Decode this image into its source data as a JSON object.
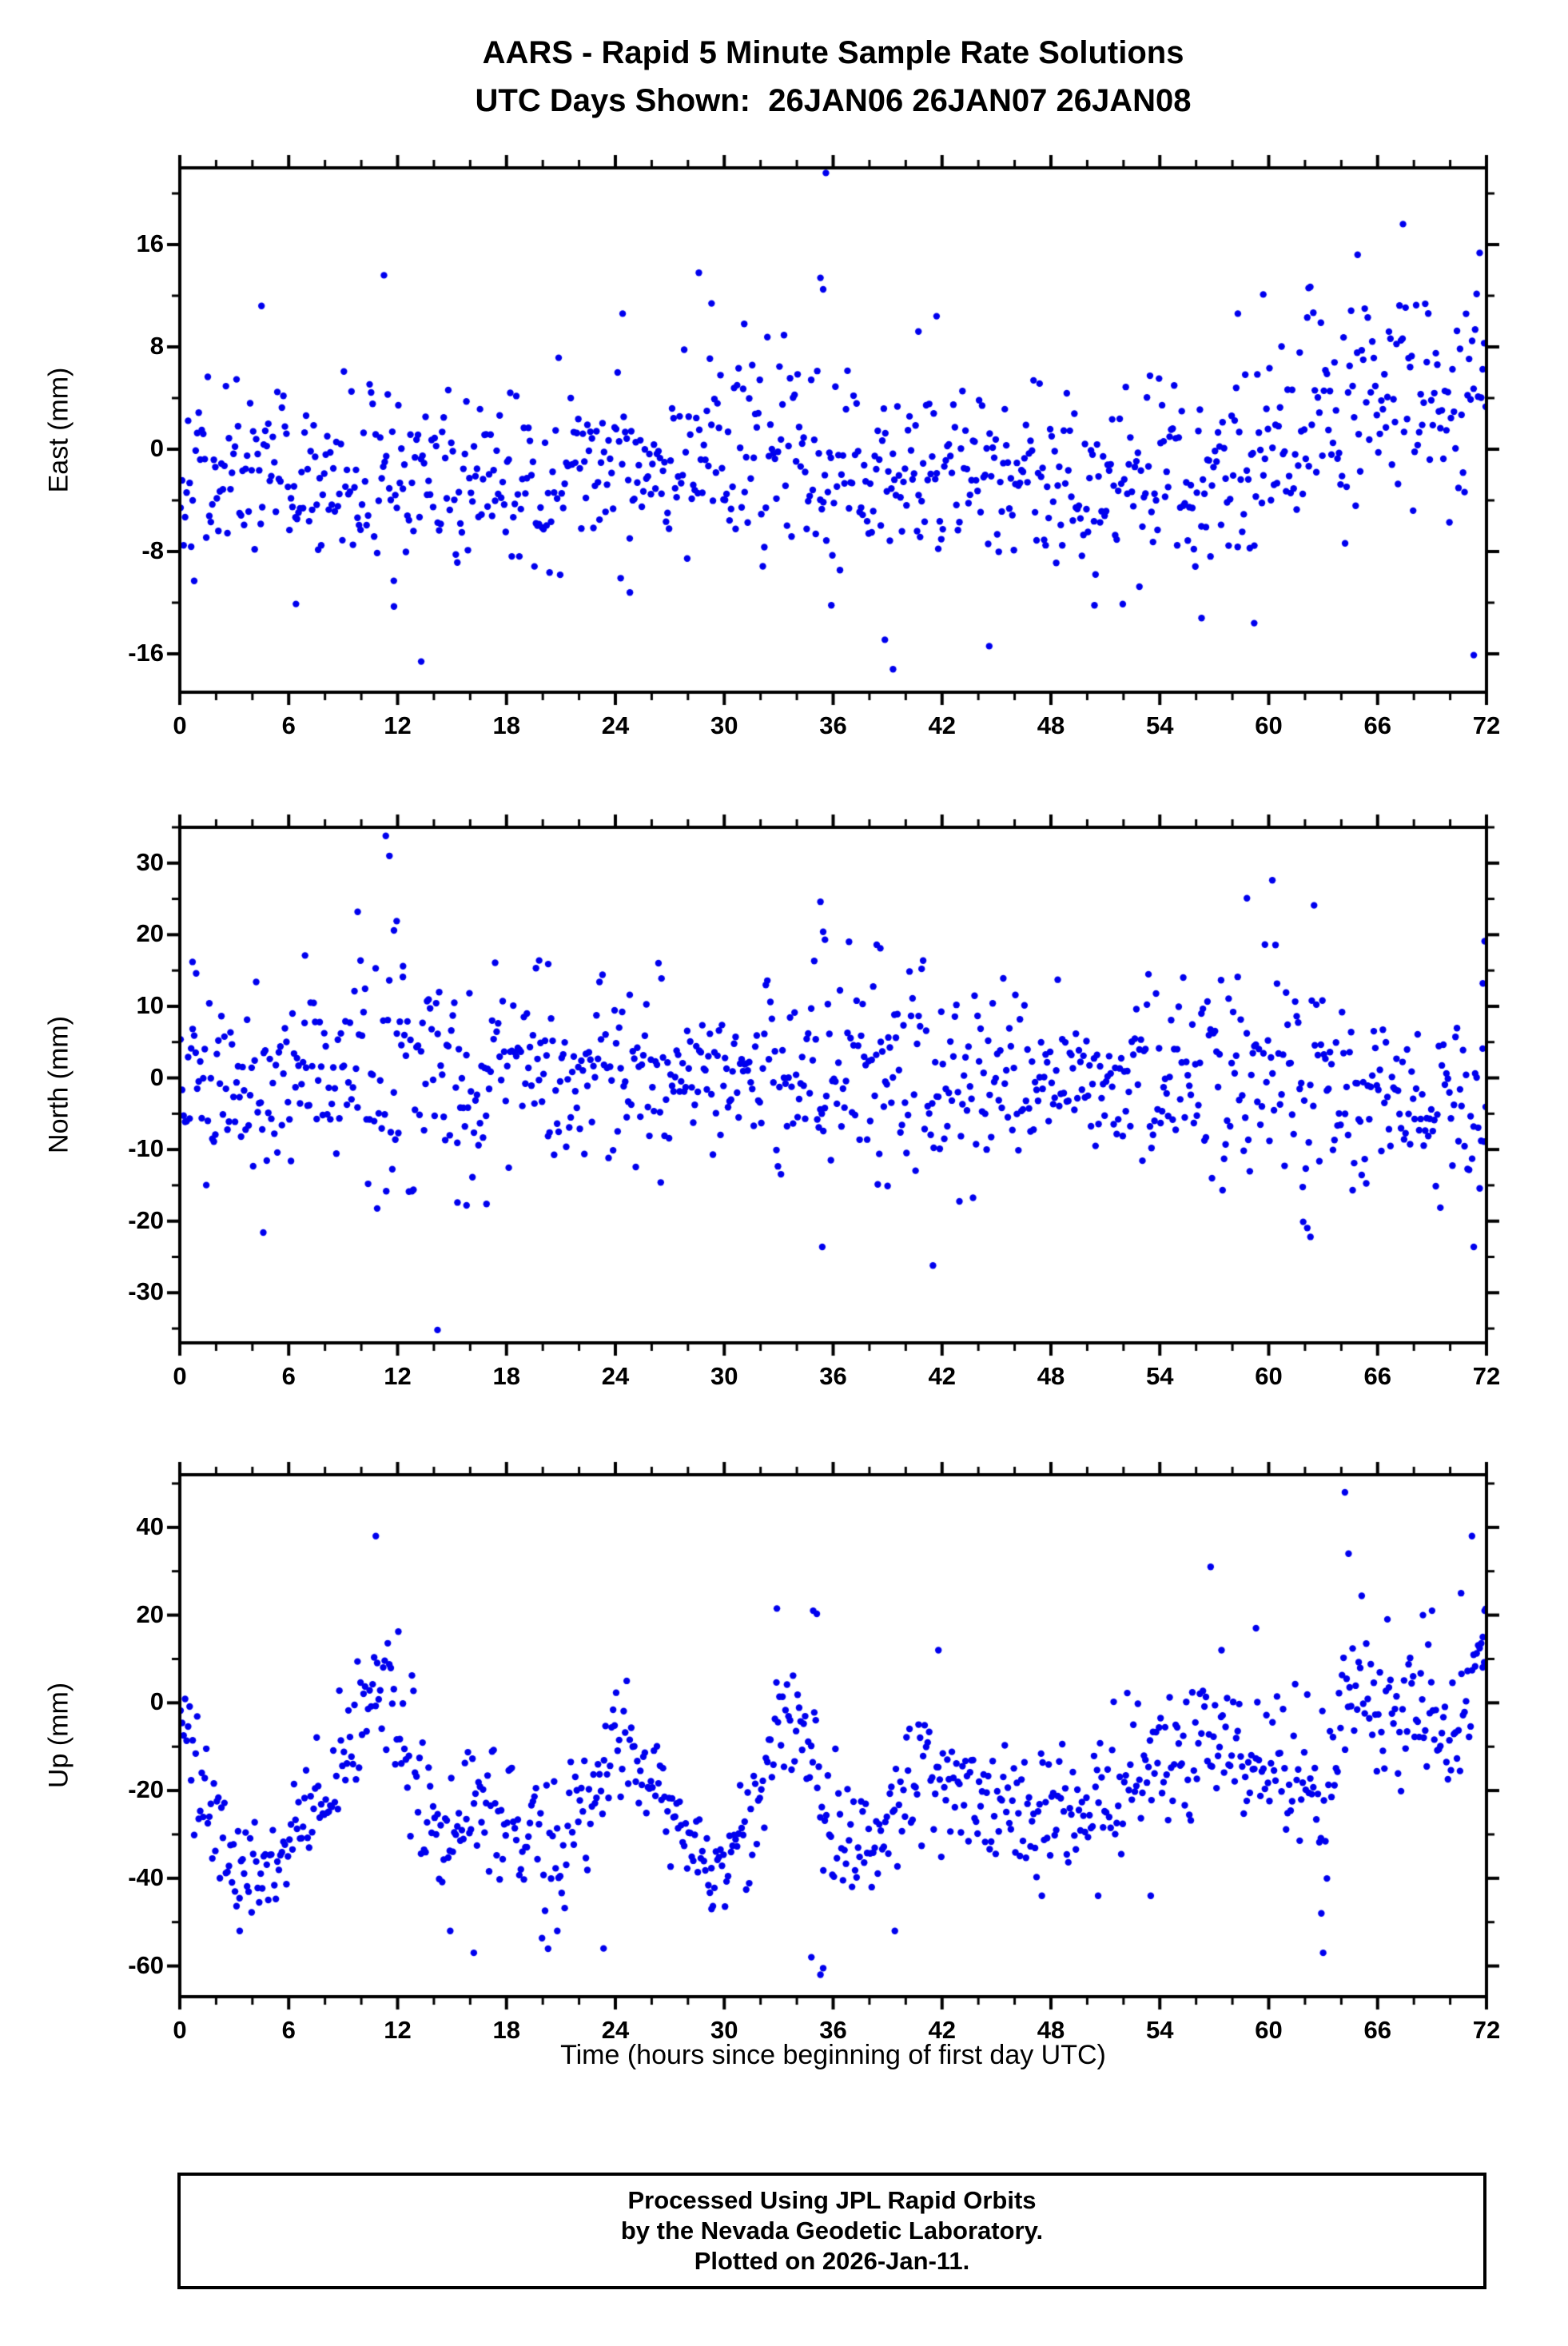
{
  "title": {
    "line1": "AARS - Rapid 5 Minute Sample Rate Solutions",
    "line2": "UTC Days Shown:  26JAN06 26JAN07 26JAN08"
  },
  "xlabel": "Time (hours since beginning of first day UTC)",
  "footer": {
    "line1": "Processed Using JPL Rapid Orbits",
    "line2": "by the Nevada Geodetic Laboratory.",
    "line3": "Plotted on 2026-Jan-11."
  },
  "marker_color": "#0000ee",
  "frame_color": "#000000",
  "chart_data": [
    {
      "type": "scatter",
      "name": "East",
      "ylabel": "East (mm)",
      "xlim": [
        0,
        72
      ],
      "ylim": [
        -19,
        22
      ],
      "xticks": [
        0,
        6,
        12,
        18,
        24,
        30,
        36,
        42,
        48,
        54,
        60,
        66,
        72
      ],
      "xminor": 2,
      "yticks": [
        16,
        8,
        0,
        -8,
        -16
      ],
      "yminor": 4,
      "n_points": 864,
      "seed": 42,
      "sample_interval_hours": 0.0833,
      "y_mean_anchors": [
        [
          0,
          -1.5
        ],
        [
          2,
          -2.5
        ],
        [
          4,
          -0.5
        ],
        [
          6,
          -2
        ],
        [
          8,
          -3
        ],
        [
          10,
          -2
        ],
        [
          12,
          -2.5
        ],
        [
          14,
          -3
        ],
        [
          16,
          -3
        ],
        [
          18,
          -2.5
        ],
        [
          20,
          -2
        ],
        [
          22,
          -1.5
        ],
        [
          24,
          -1
        ],
        [
          26,
          -0.5
        ],
        [
          28,
          0.5
        ],
        [
          30,
          0
        ],
        [
          32,
          -1
        ],
        [
          34,
          -0.5
        ],
        [
          36,
          -1.5
        ],
        [
          38,
          -2.5
        ],
        [
          40,
          -2
        ],
        [
          44,
          -2
        ],
        [
          48,
          -2.5
        ],
        [
          52,
          -2.5
        ],
        [
          54,
          -3
        ],
        [
          56,
          -3.5
        ],
        [
          58,
          -2.5
        ],
        [
          60,
          -1
        ],
        [
          62,
          1
        ],
        [
          64,
          2
        ],
        [
          66,
          3.5
        ],
        [
          68,
          5
        ],
        [
          70,
          4.5
        ],
        [
          72,
          4
        ]
      ],
      "y_std_anchors": [
        [
          0,
          3.2
        ],
        [
          10,
          3.6
        ],
        [
          20,
          3.4
        ],
        [
          30,
          3.8
        ],
        [
          36,
          3.6
        ],
        [
          48,
          3.4
        ],
        [
          56,
          4.0
        ],
        [
          60,
          4.4
        ],
        [
          72,
          4.6
        ]
      ],
      "outliers": [
        [
          4.5,
          11.2
        ],
        [
          6.4,
          -12.1
        ],
        [
          11.25,
          13.6
        ],
        [
          11.8,
          -12.3
        ],
        [
          13.3,
          -16.6
        ],
        [
          24.4,
          10.6
        ],
        [
          24.8,
          -11.2
        ],
        [
          28.6,
          13.8
        ],
        [
          29.3,
          11.4
        ],
        [
          31.1,
          9.8
        ],
        [
          35.3,
          13.4
        ],
        [
          35.45,
          12.5
        ],
        [
          35.6,
          21.6
        ],
        [
          35.9,
          -12.2
        ],
        [
          38.85,
          -14.9
        ],
        [
          39.3,
          -17.2
        ],
        [
          40.7,
          9.2
        ],
        [
          41.7,
          10.4
        ],
        [
          44.6,
          -15.4
        ],
        [
          50.4,
          -12.2
        ],
        [
          56.3,
          -13.2
        ],
        [
          58.3,
          10.6
        ],
        [
          59.2,
          -13.6
        ],
        [
          59.7,
          12.1
        ],
        [
          62.2,
          12.6
        ],
        [
          64.9,
          15.2
        ],
        [
          67.4,
          17.6
        ],
        [
          71.3,
          -16.1
        ]
      ]
    },
    {
      "type": "scatter",
      "name": "North",
      "ylabel": "North (mm)",
      "xlim": [
        0,
        72
      ],
      "ylim": [
        -37,
        35
      ],
      "xticks": [
        0,
        6,
        12,
        18,
        24,
        30,
        36,
        42,
        48,
        54,
        60,
        66,
        72
      ],
      "xminor": 2,
      "yticks": [
        30,
        20,
        10,
        0,
        -10,
        -20,
        -30
      ],
      "yminor": 5,
      "n_points": 864,
      "seed": 1337,
      "sample_interval_hours": 0.0833,
      "y_mean_anchors": [
        [
          0,
          1
        ],
        [
          4,
          -1
        ],
        [
          8,
          0.5
        ],
        [
          10,
          2
        ],
        [
          12,
          2
        ],
        [
          14,
          0
        ],
        [
          16,
          -0.5
        ],
        [
          20,
          0.5
        ],
        [
          24,
          0.5
        ],
        [
          28,
          0.5
        ],
        [
          32,
          0.5
        ],
        [
          34,
          1
        ],
        [
          38,
          1
        ],
        [
          40,
          -0.5
        ],
        [
          42,
          -1
        ],
        [
          46,
          0
        ],
        [
          48,
          0.5
        ],
        [
          52,
          0
        ],
        [
          56,
          0.5
        ],
        [
          58,
          1
        ],
        [
          60,
          0.5
        ],
        [
          62,
          -1.5
        ],
        [
          64,
          -3.5
        ],
        [
          66,
          -4
        ],
        [
          70,
          -5
        ],
        [
          72,
          -4.5
        ]
      ],
      "y_std_anchors": [
        [
          0,
          6.5
        ],
        [
          6,
          6
        ],
        [
          10,
          8
        ],
        [
          14,
          7
        ],
        [
          20,
          6
        ],
        [
          26,
          6
        ],
        [
          32,
          5.5
        ],
        [
          36,
          7
        ],
        [
          42,
          6.5
        ],
        [
          48,
          5.5
        ],
        [
          54,
          5.5
        ],
        [
          58,
          6.5
        ],
        [
          62,
          7.5
        ],
        [
          66,
          5.5
        ],
        [
          70,
          6.5
        ],
        [
          72,
          7
        ]
      ],
      "outliers": [
        [
          0.7,
          16.2
        ],
        [
          0.9,
          14.6
        ],
        [
          4.6,
          -21.6
        ],
        [
          6.9,
          17.1
        ],
        [
          9.8,
          23.2
        ],
        [
          11.35,
          33.8
        ],
        [
          11.55,
          31.0
        ],
        [
          11.8,
          20.6
        ],
        [
          11.95,
          21.9
        ],
        [
          12.3,
          15.6
        ],
        [
          14.2,
          -35.2
        ],
        [
          15.3,
          -17.4
        ],
        [
          15.8,
          -17.8
        ],
        [
          16.9,
          -17.6
        ],
        [
          19.8,
          16.4
        ],
        [
          20.3,
          15.9
        ],
        [
          26.5,
          -14.6
        ],
        [
          35.3,
          24.6
        ],
        [
          35.4,
          -23.6
        ],
        [
          35.45,
          20.4
        ],
        [
          35.55,
          19.3
        ],
        [
          38.4,
          18.6
        ],
        [
          38.6,
          18.1
        ],
        [
          39.0,
          -15.1
        ],
        [
          41.5,
          -26.2
        ],
        [
          58.8,
          25.1
        ],
        [
          60.2,
          27.6
        ],
        [
          61.9,
          -20.1
        ],
        [
          62.3,
          -22.2
        ],
        [
          62.5,
          24.1
        ],
        [
          71.3,
          -23.6
        ],
        [
          71.8,
          13.2
        ],
        [
          71.9,
          19.1
        ]
      ]
    },
    {
      "type": "scatter",
      "name": "Up",
      "ylabel": "Up (mm)",
      "xlim": [
        0,
        72
      ],
      "ylim": [
        -67,
        52
      ],
      "xticks": [
        0,
        6,
        12,
        18,
        24,
        30,
        36,
        42,
        48,
        54,
        60,
        66,
        72
      ],
      "xminor": 2,
      "yticks": [
        40,
        20,
        0,
        -20,
        -40,
        -60
      ],
      "yminor": 10,
      "n_points": 864,
      "seed": 2024,
      "sample_interval_hours": 0.0833,
      "y_mean_anchors": [
        [
          0,
          0
        ],
        [
          0.5,
          -8
        ],
        [
          1.5,
          -18
        ],
        [
          2.5,
          -30
        ],
        [
          3.5,
          -38
        ],
        [
          4.5,
          -38
        ],
        [
          5.5,
          -34
        ],
        [
          6.5,
          -30
        ],
        [
          7.5,
          -26
        ],
        [
          8.5,
          -18
        ],
        [
          9.5,
          -8
        ],
        [
          10.5,
          4
        ],
        [
          11.3,
          10
        ],
        [
          12,
          -4
        ],
        [
          13,
          -18
        ],
        [
          14,
          -26
        ],
        [
          15,
          -30
        ],
        [
          16,
          -28
        ],
        [
          18,
          -26
        ],
        [
          19,
          -30
        ],
        [
          21,
          -35
        ],
        [
          22,
          -28
        ],
        [
          23,
          -18
        ],
        [
          24,
          -8
        ],
        [
          25,
          -10
        ],
        [
          26,
          -18
        ],
        [
          27,
          -25
        ],
        [
          28,
          -32
        ],
        [
          29,
          -38
        ],
        [
          30,
          -40
        ],
        [
          31,
          -28
        ],
        [
          32,
          -18
        ],
        [
          33,
          -8
        ],
        [
          34,
          -4
        ],
        [
          35,
          -10
        ],
        [
          35.5,
          -38
        ],
        [
          36,
          -34
        ],
        [
          38,
          -30
        ],
        [
          39,
          -30
        ],
        [
          40,
          -20
        ],
        [
          41,
          -14
        ],
        [
          42,
          -17
        ],
        [
          44,
          -23
        ],
        [
          46,
          -25
        ],
        [
          47,
          -26
        ],
        [
          48,
          -24
        ],
        [
          50,
          -22
        ],
        [
          52,
          -16
        ],
        [
          54,
          -13
        ],
        [
          56,
          -12
        ],
        [
          58,
          -12
        ],
        [
          60,
          -13
        ],
        [
          61,
          -14
        ],
        [
          62,
          -18
        ],
        [
          62.8,
          -26
        ],
        [
          63.5,
          -12
        ],
        [
          64,
          -4
        ],
        [
          64.5,
          2
        ],
        [
          65,
          4
        ],
        [
          65.5,
          0
        ],
        [
          66,
          -3
        ],
        [
          67,
          -5
        ],
        [
          68,
          -3
        ],
        [
          69,
          -4
        ],
        [
          70,
          -8
        ],
        [
          70.8,
          -4
        ],
        [
          71.3,
          8
        ],
        [
          72,
          16
        ]
      ],
      "y_std_anchors": [
        [
          0,
          7
        ],
        [
          2,
          8
        ],
        [
          4,
          6
        ],
        [
          8,
          7
        ],
        [
          12,
          8
        ],
        [
          16,
          9
        ],
        [
          20,
          9
        ],
        [
          24,
          6
        ],
        [
          28,
          6
        ],
        [
          32,
          7
        ],
        [
          36,
          9
        ],
        [
          40,
          8
        ],
        [
          44,
          6
        ],
        [
          48,
          6
        ],
        [
          52,
          7
        ],
        [
          56,
          8
        ],
        [
          60,
          7
        ],
        [
          62,
          8
        ],
        [
          64,
          10
        ],
        [
          68,
          9
        ],
        [
          72,
          6
        ]
      ],
      "outliers": [
        [
          3.3,
          -52
        ],
        [
          10.8,
          38
        ],
        [
          14.9,
          -52
        ],
        [
          16.2,
          -57
        ],
        [
          20.8,
          -52
        ],
        [
          23.35,
          -56
        ],
        [
          29.3,
          -47
        ],
        [
          32.9,
          21.5
        ],
        [
          34.8,
          -58
        ],
        [
          34.9,
          21
        ],
        [
          35.1,
          20.3
        ],
        [
          35.3,
          -62
        ],
        [
          35.45,
          -60.5
        ],
        [
          39.4,
          -52
        ],
        [
          41.8,
          12
        ],
        [
          47.5,
          -44
        ],
        [
          50.6,
          -44
        ],
        [
          53.5,
          -44
        ],
        [
          56.8,
          31
        ],
        [
          57.4,
          12
        ],
        [
          59.3,
          17
        ],
        [
          62.9,
          -48
        ],
        [
          63.0,
          -57
        ],
        [
          64.2,
          48
        ],
        [
          64.4,
          34
        ],
        [
          68.5,
          20
        ],
        [
          69.0,
          21
        ],
        [
          70.6,
          25
        ],
        [
          71.2,
          38
        ],
        [
          71.8,
          15
        ],
        [
          71.9,
          21
        ]
      ]
    }
  ]
}
